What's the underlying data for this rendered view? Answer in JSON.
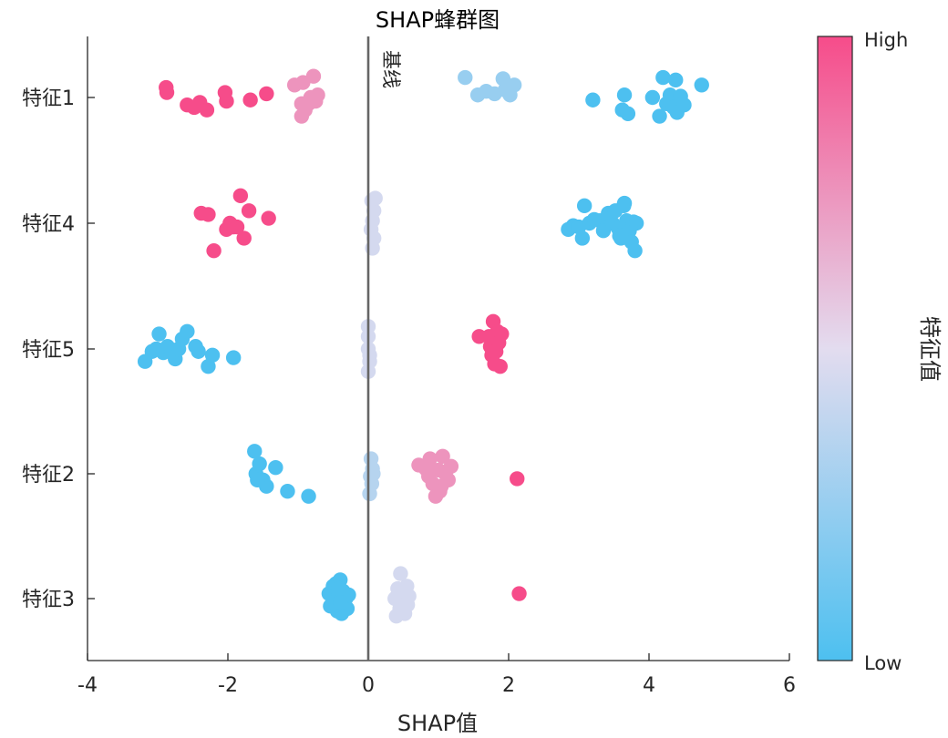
{
  "chart_data": {
    "type": "scatter",
    "title": "SHAP蜂群图",
    "xlabel": "SHAP值",
    "xlim": [
      -4,
      6
    ],
    "xticks": [
      -4,
      -2,
      0,
      2,
      4,
      6
    ],
    "categories": [
      "特征1",
      "特征4",
      "特征5",
      "特征2",
      "特征3"
    ],
    "baseline": {
      "x": 0,
      "label": "基线"
    },
    "colorbar": {
      "label": "特征值",
      "high_label": "High",
      "low_label": "Low",
      "high_color": "#f64c8a",
      "mid_color": "#e3dcef",
      "low_color": "#4dc0f0"
    },
    "grid": false,
    "series": [
      {
        "category": "特征1",
        "points": [
          [
            -2.88,
            0.08,
            1
          ],
          [
            -2.87,
            0.04,
            1
          ],
          [
            -2.58,
            -0.06,
            1
          ],
          [
            -2.48,
            -0.08,
            1
          ],
          [
            -2.4,
            -0.04,
            1
          ],
          [
            -2.3,
            -0.1,
            1
          ],
          [
            -2.04,
            0.04,
            1
          ],
          [
            -2.02,
            -0.03,
            1
          ],
          [
            -1.68,
            -0.02,
            1
          ],
          [
            -1.45,
            0.03,
            1
          ],
          [
            -1.05,
            0.1,
            0.75
          ],
          [
            -0.93,
            0.12,
            0.75
          ],
          [
            -0.78,
            0.17,
            0.75
          ],
          [
            -0.95,
            -0.05,
            0.75
          ],
          [
            -0.9,
            -0.1,
            0.75
          ],
          [
            -0.85,
            -0.05,
            0.75
          ],
          [
            -0.82,
            0.0,
            0.75
          ],
          [
            -0.75,
            -0.03,
            0.75
          ],
          [
            -0.72,
            0.02,
            0.75
          ],
          [
            -0.95,
            -0.15,
            0.75
          ],
          [
            1.38,
            0.16,
            0.25
          ],
          [
            1.56,
            0.02,
            0.25
          ],
          [
            1.68,
            0.05,
            0.25
          ],
          [
            1.8,
            0.03,
            0.25
          ],
          [
            1.92,
            0.15,
            0.25
          ],
          [
            1.95,
            0.06,
            0.25
          ],
          [
            2.02,
            0.02,
            0.25
          ],
          [
            2.08,
            0.1,
            0.25
          ],
          [
            3.2,
            -0.02,
            0
          ],
          [
            3.65,
            0.02,
            0
          ],
          [
            3.62,
            -0.1,
            0
          ],
          [
            3.7,
            -0.13,
            0
          ],
          [
            4.05,
            0.0,
            0
          ],
          [
            4.15,
            -0.15,
            0
          ],
          [
            4.2,
            0.16,
            0
          ],
          [
            4.25,
            -0.05,
            0
          ],
          [
            4.3,
            0.02,
            0
          ],
          [
            4.35,
            -0.08,
            0
          ],
          [
            4.4,
            -0.12,
            0
          ],
          [
            4.45,
            0.01,
            0
          ],
          [
            4.38,
            0.14,
            0
          ],
          [
            4.5,
            -0.06,
            0
          ],
          [
            4.75,
            0.1,
            0
          ]
        ]
      },
      {
        "category": "特征4",
        "points": [
          [
            -2.38,
            0.08,
            1
          ],
          [
            -2.28,
            0.07,
            1
          ],
          [
            -2.2,
            -0.22,
            1
          ],
          [
            -2.02,
            -0.05,
            1
          ],
          [
            -1.97,
            0.0,
            1
          ],
          [
            -1.92,
            -0.03,
            1
          ],
          [
            -1.87,
            -0.03,
            1
          ],
          [
            -1.82,
            0.22,
            1
          ],
          [
            -1.77,
            -0.12,
            1
          ],
          [
            -1.7,
            0.1,
            1
          ],
          [
            -1.42,
            0.04,
            1
          ],
          [
            0.05,
            0.18,
            0.45
          ],
          [
            0.08,
            0.1,
            0.45
          ],
          [
            0.06,
            0.02,
            0.45
          ],
          [
            0.04,
            -0.05,
            0.45
          ],
          [
            0.08,
            -0.12,
            0.45
          ],
          [
            0.06,
            -0.2,
            0.45
          ],
          [
            0.1,
            0.2,
            0.45
          ],
          [
            2.85,
            -0.05,
            0
          ],
          [
            2.92,
            -0.02,
            0
          ],
          [
            3.0,
            -0.03,
            0
          ],
          [
            3.05,
            -0.12,
            0
          ],
          [
            3.08,
            0.14,
            0
          ],
          [
            3.15,
            0.0,
            0
          ],
          [
            3.22,
            0.03,
            0
          ],
          [
            3.3,
            0.02,
            0
          ],
          [
            3.35,
            -0.06,
            0
          ],
          [
            3.42,
            0.08,
            0
          ],
          [
            3.48,
            0.0,
            0
          ],
          [
            3.52,
            0.1,
            0
          ],
          [
            3.56,
            -0.04,
            0
          ],
          [
            3.6,
            -0.12,
            0
          ],
          [
            3.64,
            0.14,
            0
          ],
          [
            3.68,
            0.02,
            0
          ],
          [
            3.72,
            -0.06,
            0
          ],
          [
            3.75,
            -0.15,
            0
          ],
          [
            3.78,
            0.01,
            0
          ],
          [
            3.8,
            -0.22,
            0
          ],
          [
            3.82,
            0.0,
            0
          ],
          [
            3.65,
            0.16,
            0
          ],
          [
            3.58,
            -0.1,
            0
          ]
        ]
      },
      {
        "category": "特征5",
        "points": [
          [
            -3.18,
            -0.1,
            0
          ],
          [
            -3.08,
            -0.02,
            0
          ],
          [
            -3.02,
            0.0,
            0
          ],
          [
            -2.98,
            0.12,
            0
          ],
          [
            -2.92,
            -0.03,
            0
          ],
          [
            -2.86,
            0.02,
            0
          ],
          [
            -2.8,
            -0.02,
            0
          ],
          [
            -2.75,
            -0.08,
            0
          ],
          [
            -2.7,
            0.0,
            0
          ],
          [
            -2.65,
            0.08,
            0
          ],
          [
            -2.58,
            0.14,
            0
          ],
          [
            -2.46,
            0.02,
            0
          ],
          [
            -2.42,
            -0.02,
            0
          ],
          [
            -2.28,
            -0.14,
            0
          ],
          [
            -2.22,
            -0.05,
            0
          ],
          [
            -1.92,
            -0.07,
            0
          ],
          [
            0.0,
            0.18,
            0.45
          ],
          [
            0.0,
            0.1,
            0.45
          ],
          [
            0.0,
            0.0,
            0.45
          ],
          [
            0.02,
            -0.1,
            0.45
          ],
          [
            0.0,
            -0.18,
            0.45
          ],
          [
            0.02,
            -0.05,
            0.45
          ],
          [
            1.72,
            0.1,
            1
          ],
          [
            1.74,
            0.02,
            1
          ],
          [
            1.76,
            -0.05,
            1
          ],
          [
            1.78,
            0.22,
            1
          ],
          [
            1.8,
            -0.12,
            1
          ],
          [
            1.84,
            0.14,
            1
          ],
          [
            1.86,
            0.05,
            1
          ],
          [
            1.88,
            -0.14,
            1
          ],
          [
            1.82,
            -0.02,
            1
          ],
          [
            1.9,
            0.12,
            1
          ],
          [
            1.58,
            0.1,
            1
          ]
        ]
      },
      {
        "category": "特征2",
        "points": [
          [
            -1.62,
            0.18,
            0
          ],
          [
            -1.6,
            0.0,
            0
          ],
          [
            -1.55,
            0.08,
            0
          ],
          [
            -1.5,
            -0.05,
            0
          ],
          [
            -1.45,
            -0.1,
            0
          ],
          [
            -1.32,
            0.05,
            0
          ],
          [
            -1.15,
            -0.14,
            0
          ],
          [
            -0.85,
            -0.18,
            0
          ],
          [
            -1.58,
            -0.05,
            0
          ],
          [
            0.04,
            0.12,
            0.35
          ],
          [
            0.06,
            0.04,
            0.35
          ],
          [
            0.03,
            -0.02,
            0.35
          ],
          [
            0.05,
            -0.08,
            0.35
          ],
          [
            0.02,
            -0.16,
            0.35
          ],
          [
            0.07,
            0.0,
            0.35
          ],
          [
            0.72,
            0.07,
            0.75
          ],
          [
            0.82,
            0.04,
            0.75
          ],
          [
            0.88,
            0.12,
            0.75
          ],
          [
            0.92,
            -0.08,
            0.75
          ],
          [
            0.96,
            -0.18,
            0.75
          ],
          [
            1.0,
            0.03,
            0.75
          ],
          [
            1.04,
            -0.1,
            0.75
          ],
          [
            1.06,
            0.14,
            0.75
          ],
          [
            1.1,
            0.0,
            0.75
          ],
          [
            1.14,
            -0.05,
            0.75
          ],
          [
            1.18,
            0.06,
            0.75
          ],
          [
            0.86,
            -0.02,
            0.75
          ],
          [
            1.02,
            -0.14,
            0.75
          ],
          [
            2.12,
            -0.04,
            1
          ]
        ]
      },
      {
        "category": "特征3",
        "points": [
          [
            -0.56,
            0.04,
            0
          ],
          [
            -0.54,
            -0.06,
            0
          ],
          [
            -0.5,
            0.1,
            0
          ],
          [
            -0.48,
            -0.02,
            0
          ],
          [
            -0.46,
            0.12,
            0
          ],
          [
            -0.44,
            -0.1,
            0
          ],
          [
            -0.42,
            0.02,
            0
          ],
          [
            -0.4,
            0.15,
            0
          ],
          [
            -0.38,
            -0.12,
            0
          ],
          [
            -0.36,
            0.06,
            0
          ],
          [
            -0.34,
            -0.04,
            0
          ],
          [
            -0.32,
            0.0,
            0
          ],
          [
            -0.3,
            -0.08,
            0
          ],
          [
            -0.28,
            0.03,
            0
          ],
          [
            -0.46,
            -0.05,
            0
          ],
          [
            -0.4,
            -0.03,
            0
          ],
          [
            -0.42,
            0.08,
            0
          ],
          [
            0.38,
            0.0,
            0.45
          ],
          [
            0.42,
            0.08,
            0.45
          ],
          [
            0.45,
            -0.08,
            0.45
          ],
          [
            0.48,
            -0.02,
            0.45
          ],
          [
            0.5,
            0.06,
            0.45
          ],
          [
            0.52,
            -0.12,
            0.45
          ],
          [
            0.55,
            0.1,
            0.45
          ],
          [
            0.56,
            -0.05,
            0.45
          ],
          [
            0.58,
            0.02,
            0.45
          ],
          [
            0.46,
            0.2,
            0.45
          ],
          [
            0.4,
            -0.14,
            0.45
          ],
          [
            2.15,
            0.04,
            1
          ]
        ]
      }
    ]
  }
}
